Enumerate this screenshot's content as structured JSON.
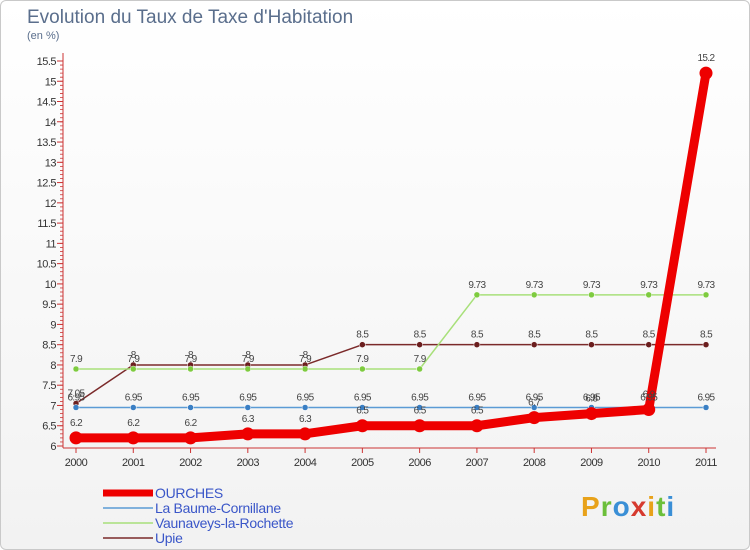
{
  "chart_data": {
    "type": "line",
    "title": "Evolution du Taux de Taxe d'Habitation",
    "subtitle": "(en %)",
    "xlabel": "",
    "ylabel": "",
    "categories": [
      "2000",
      "2001",
      "2002",
      "2003",
      "2004",
      "2005",
      "2006",
      "2007",
      "2008",
      "2009",
      "2010",
      "2011"
    ],
    "ylim": [
      6,
      15.5
    ],
    "yticks": [
      "6",
      "6.5",
      "7",
      "7.5",
      "8",
      "8.5",
      "9",
      "9.5",
      "10",
      "10.5",
      "11",
      "11.5",
      "12",
      "12.5",
      "13",
      "13.5",
      "14",
      "14.5",
      "15",
      "15.5"
    ],
    "grid": false,
    "legend_position": "bottom-left",
    "series": [
      {
        "name": "OURCHES",
        "color": "#ee0000",
        "width": 9,
        "marker": "#ee0000",
        "values": [
          6.2,
          6.2,
          6.2,
          6.3,
          6.3,
          6.5,
          6.5,
          6.5,
          6.7,
          6.8,
          6.9,
          15.2
        ],
        "labels": [
          "6.2",
          "6.2",
          "6.2",
          "6.3",
          "6.3",
          "6.5",
          "6.5",
          "6.5",
          "6.7",
          "6.8",
          "6.9",
          "15.2"
        ]
      },
      {
        "name": "La Baume-Cornillane",
        "color": "#5b9bd5",
        "width": 1.5,
        "marker": "#3a7fc4",
        "values": [
          6.95,
          6.95,
          6.95,
          6.95,
          6.95,
          6.95,
          6.95,
          6.95,
          6.95,
          6.95,
          6.95,
          6.95
        ],
        "labels": [
          "6.95",
          "6.95",
          "6.95",
          "6.95",
          "6.95",
          "6.95",
          "6.95",
          "6.95",
          "6.95",
          "6.95",
          "6.95",
          "6.95"
        ]
      },
      {
        "name": "Vaunaveys-la-Rochette",
        "color": "#a8e07a",
        "width": 1.5,
        "marker": "#7ecb3f",
        "values": [
          7.9,
          7.9,
          7.9,
          7.9,
          7.9,
          7.9,
          7.9,
          9.73,
          9.73,
          9.73,
          9.73,
          9.73
        ],
        "labels": [
          "7.9",
          "7.9",
          "7.9",
          "7.9",
          "7.9",
          "7.9",
          "7.9",
          "9.73",
          "9.73",
          "9.73",
          "9.73",
          "9.73"
        ]
      },
      {
        "name": "Upie",
        "color": "#7b2a2a",
        "width": 1.5,
        "marker": "#6b1e1e",
        "values": [
          7.05,
          8,
          8,
          8,
          8,
          8.5,
          8.5,
          8.5,
          8.5,
          8.5,
          8.5,
          8.5
        ],
        "labels": [
          "7.05",
          "8",
          "8",
          "8",
          "8",
          "8.5",
          "8.5",
          "8.5",
          "8.5",
          "8.5",
          "8.5",
          "8.5"
        ]
      }
    ]
  },
  "logo": {
    "letters": [
      {
        "ch": "P",
        "color": "#e8a21a"
      },
      {
        "ch": "r",
        "color": "#6cbf3a"
      },
      {
        "ch": "o",
        "color": "#3a8fd6"
      },
      {
        "ch": "x",
        "color": "#d63a2f"
      },
      {
        "ch": "i",
        "color": "#e8a21a"
      },
      {
        "ch": "t",
        "color": "#6cbf3a"
      },
      {
        "ch": "i",
        "color": "#3a8fd6"
      }
    ]
  }
}
